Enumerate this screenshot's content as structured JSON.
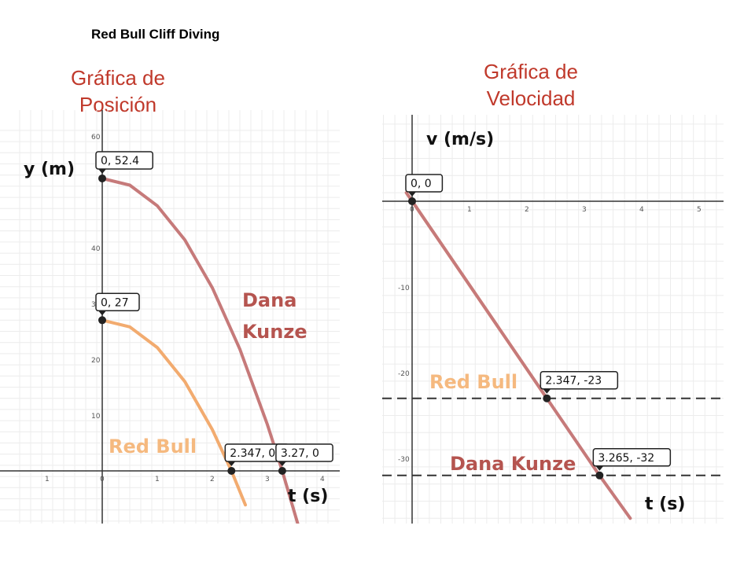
{
  "slide": {
    "title": "Red Bull Cliff Diving"
  },
  "colors": {
    "dana": "#c67a7a",
    "redbull": "#f2ab6f",
    "danaLabel": "#b5544f",
    "redbullLabel": "#f5b97f",
    "title": "#c0392b"
  },
  "chart_data": [
    {
      "type": "line",
      "title": "Gráfica de Posición",
      "xlabel": "t (s)",
      "ylabel": "y (m)",
      "xlim": [
        -1.5,
        4.3
      ],
      "ylim": [
        -9,
        62
      ],
      "xticks": [
        "1",
        "0",
        "1",
        "2",
        "3",
        "4"
      ],
      "yticks": [
        "60",
        "",
        "40",
        "30",
        "20",
        "10"
      ],
      "grid": true,
      "series": [
        {
          "name": "Dana Kunze",
          "x": [
            0,
            0.5,
            1,
            1.5,
            2,
            2.5,
            3,
            3.27,
            3.6
          ],
          "y": [
            52.4,
            51.2,
            47.5,
            41.4,
            32.8,
            21.8,
            8.3,
            0,
            -11.1
          ]
        },
        {
          "name": "Red Bull",
          "x": [
            0,
            0.5,
            1,
            1.5,
            2,
            2.347,
            2.6
          ],
          "y": [
            27,
            25.8,
            22.1,
            16.0,
            7.4,
            0,
            -6.1
          ]
        }
      ],
      "points": [
        {
          "label": "0, 52.4",
          "x": 0,
          "y": 52.4
        },
        {
          "label": "0, 27",
          "x": 0,
          "y": 27
        },
        {
          "label": "2.347, 0",
          "x": 2.347,
          "y": 0
        },
        {
          "label": "3.27, 0",
          "x": 3.27,
          "y": 0
        }
      ]
    },
    {
      "type": "line",
      "title": "Gráfica de Velocidad",
      "xlabel": "t (s)",
      "ylabel": "v (m/s)",
      "xlim": [
        -0.5,
        5.4
      ],
      "ylim": [
        -37,
        10
      ],
      "xticks": [
        "0",
        "1",
        "2",
        "3",
        "4",
        "5"
      ],
      "yticks": [
        "-10",
        "-20",
        "-30"
      ],
      "grid": true,
      "series": [
        {
          "name": "Red Bull",
          "x": [
            -0.1,
            2.347
          ],
          "y": [
            1,
            -23
          ]
        },
        {
          "name": "Dana Kunze",
          "x": [
            -0.1,
            3.265,
            3.8
          ],
          "y": [
            1,
            -32,
            -37
          ]
        }
      ],
      "points": [
        {
          "label": "0, 0",
          "x": 0,
          "y": 0
        },
        {
          "label": "2.347, -23",
          "x": 2.347,
          "y": -23
        },
        {
          "label": "3.265, -32",
          "x": 3.265,
          "y": -32
        }
      ],
      "reference_lines": [
        -23,
        -32
      ]
    }
  ]
}
